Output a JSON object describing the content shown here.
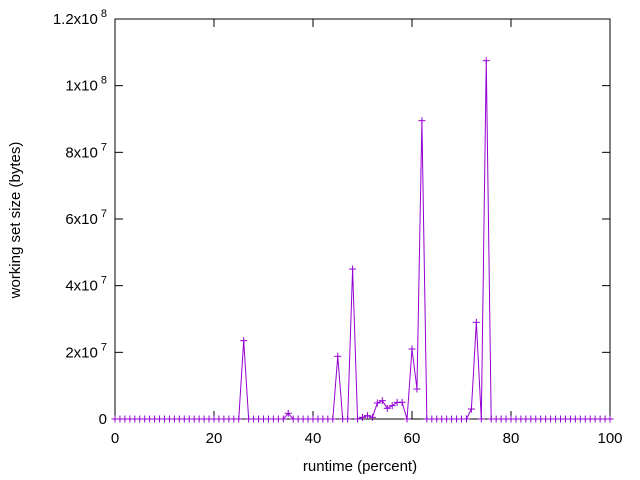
{
  "chart_data": {
    "type": "line",
    "xlabel": "runtime (percent)",
    "ylabel": "working set size (bytes)",
    "xlim": [
      0,
      100
    ],
    "ylim": [
      0,
      120000000
    ],
    "x_ticks": [
      {
        "value": 0,
        "label": "0"
      },
      {
        "value": 20,
        "label": "20"
      },
      {
        "value": 40,
        "label": "40"
      },
      {
        "value": 60,
        "label": "60"
      },
      {
        "value": 80,
        "label": "80"
      },
      {
        "value": 100,
        "label": "100"
      }
    ],
    "y_ticks": [
      {
        "value": 0,
        "mantissa": "0",
        "exp": ""
      },
      {
        "value": 20000000,
        "mantissa": "2x10",
        "exp": "7"
      },
      {
        "value": 40000000,
        "mantissa": "4x10",
        "exp": "7"
      },
      {
        "value": 60000000,
        "mantissa": "6x10",
        "exp": "7"
      },
      {
        "value": 80000000,
        "mantissa": "8x10",
        "exp": "7"
      },
      {
        "value": 100000000,
        "mantissa": "1x10",
        "exp": "8"
      },
      {
        "value": 120000000,
        "mantissa": "1.2x10",
        "exp": "8"
      }
    ],
    "grid": false,
    "series": [
      {
        "color": "#9400d3",
        "marker": "plus",
        "x": [
          0,
          1,
          2,
          3,
          4,
          5,
          6,
          7,
          8,
          9,
          10,
          11,
          12,
          13,
          14,
          15,
          16,
          17,
          18,
          19,
          20,
          21,
          22,
          23,
          24,
          25,
          26,
          27,
          28,
          29,
          30,
          31,
          32,
          33,
          34,
          35,
          36,
          37,
          38,
          39,
          40,
          41,
          42,
          43,
          44,
          45,
          46,
          47,
          48,
          49,
          50,
          51,
          52,
          53,
          54,
          55,
          56,
          57,
          58,
          59,
          60,
          61,
          62,
          63,
          64,
          65,
          66,
          67,
          68,
          69,
          70,
          71,
          72,
          73,
          74,
          75,
          76,
          77,
          78,
          79,
          80,
          81,
          82,
          83,
          84,
          85,
          86,
          87,
          88,
          89,
          90,
          91,
          92,
          93,
          94,
          95,
          96,
          97,
          98,
          99,
          100
        ],
        "y": [
          0,
          0,
          0,
          0,
          0,
          0,
          0,
          0,
          0,
          0,
          0,
          0,
          0,
          0,
          0,
          0,
          0,
          0,
          0,
          0,
          0,
          0,
          0,
          0,
          0,
          0,
          23500000,
          0,
          0,
          0,
          0,
          0,
          0,
          0,
          0,
          1700000,
          0,
          0,
          0,
          0,
          0,
          0,
          0,
          0,
          0,
          18800000,
          0,
          0,
          45000000,
          0,
          500000,
          1000000,
          500000,
          4800000,
          5500000,
          3200000,
          4000000,
          5000000,
          5000000,
          0,
          21000000,
          9000000,
          89500000,
          0,
          0,
          0,
          0,
          0,
          0,
          0,
          0,
          0,
          3000000,
          29000000,
          0,
          107500000,
          0,
          0,
          0,
          0,
          0,
          0,
          0,
          0,
          0,
          0,
          0,
          0,
          0,
          0,
          0,
          0,
          0,
          0,
          0,
          0,
          0,
          0,
          0,
          0,
          0
        ]
      }
    ]
  }
}
